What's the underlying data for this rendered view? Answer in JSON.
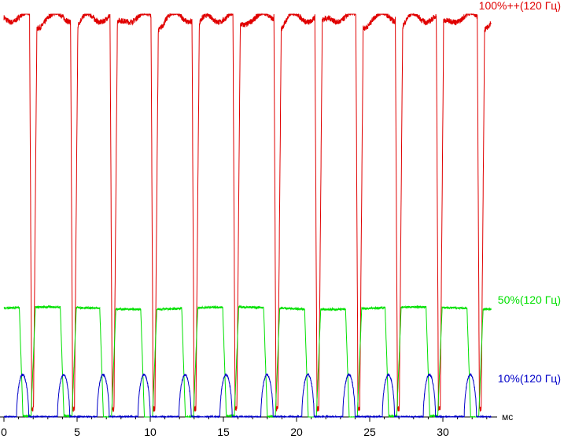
{
  "chart_data": {
    "type": "line",
    "title": "",
    "xlabel": "",
    "ylabel": "",
    "x_unit": "мс",
    "xlim": [
      0,
      33.5
    ],
    "ylim": [
      0,
      100
    ],
    "x_ticks": [
      0,
      5,
      10,
      15,
      20,
      25,
      30
    ],
    "grid": false,
    "legend": "inline labels at right end of each series",
    "period_ms": 2.78,
    "series": [
      {
        "name": "100%++(120 Гц)",
        "color": "#e00000",
        "high_level": 100,
        "low_level": 2,
        "note": "flicker: brief dips to near zero once per period (~2.78 ms)",
        "dip_times_ms": [
          1.9,
          4.7,
          7.4,
          10.2,
          13.0,
          15.8,
          18.6,
          21.4,
          24.2,
          26.9,
          29.7,
          32.5
        ]
      },
      {
        "name": "50%(120 Гц)",
        "color": "#00e000",
        "high_level": 27,
        "low_level": 0,
        "note": "rectangular dips to zero each period",
        "dip_times_ms": [
          1.3,
          4.1,
          6.8,
          9.6,
          12.4,
          15.2,
          18.0,
          20.8,
          23.6,
          26.3,
          29.1,
          31.9
        ]
      },
      {
        "name": "10%(120 Гц)",
        "color": "#0000c8",
        "high_level": 10.5,
        "low_level": 0,
        "note": "short pulses each period, otherwise near zero",
        "pulse_times_ms": [
          1.3,
          4.1,
          6.8,
          9.6,
          12.4,
          15.2,
          18.0,
          20.8,
          23.6,
          26.3,
          29.1,
          31.9
        ]
      }
    ]
  }
}
